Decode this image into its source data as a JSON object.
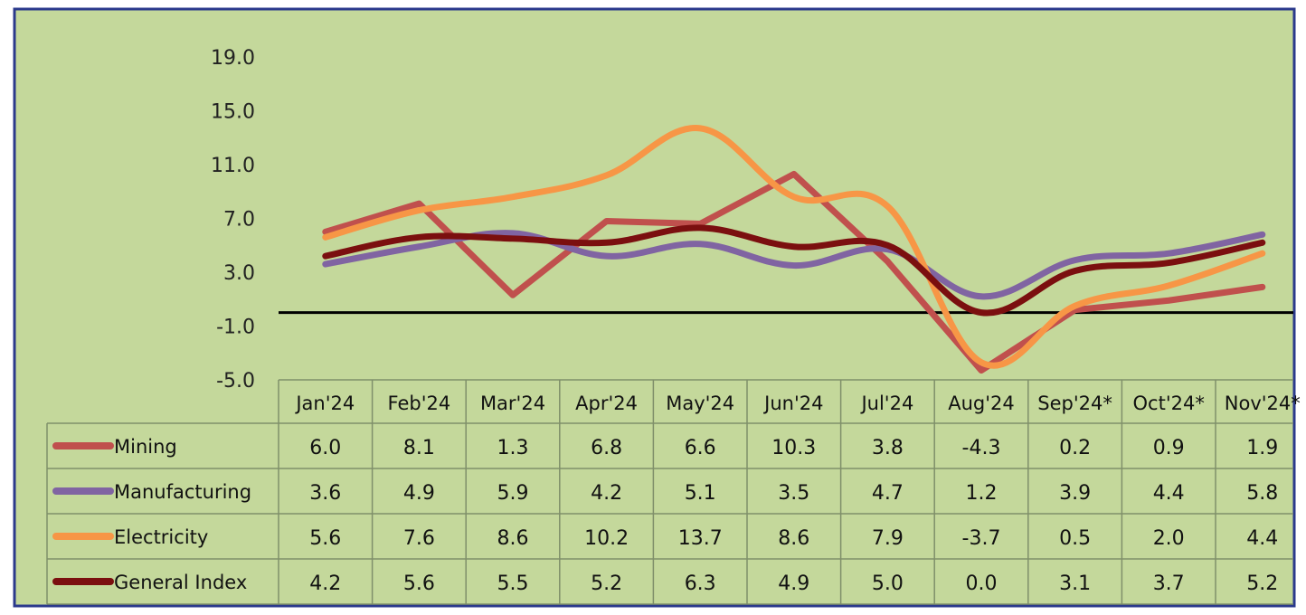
{
  "chart_data": {
    "type": "line",
    "categories": [
      "Jan'24",
      "Feb'24",
      "Mar'24",
      "Apr'24",
      "May'24",
      "Jun'24",
      "Jul'24",
      "Aug'24",
      "Sep'24*",
      "Oct'24*",
      "Nov'24*"
    ],
    "series": [
      {
        "name": "Mining",
        "color": "#c0504d",
        "values": [
          6.0,
          8.1,
          1.3,
          6.8,
          6.6,
          10.3,
          3.8,
          -4.3,
          0.2,
          0.9,
          1.9
        ]
      },
      {
        "name": "Manufacturing",
        "color": "#8064a2",
        "values": [
          3.6,
          4.9,
          5.9,
          4.2,
          5.1,
          3.5,
          4.7,
          1.2,
          3.9,
          4.4,
          5.8
        ]
      },
      {
        "name": "Electricity",
        "color": "#f79646",
        "values": [
          5.6,
          7.6,
          8.6,
          10.2,
          13.7,
          8.6,
          7.9,
          -3.7,
          0.5,
          2.0,
          4.4
        ]
      },
      {
        "name": "General Index",
        "color": "#7b0f0f",
        "values": [
          4.2,
          5.6,
          5.5,
          5.2,
          6.3,
          4.9,
          5.0,
          0.0,
          3.1,
          3.7,
          5.2
        ]
      }
    ],
    "yticks": [
      "19.0",
      "15.0",
      "11.0",
      "7.0",
      "3.0",
      "-1.0",
      "-5.0"
    ],
    "ylim": [
      -5,
      19
    ],
    "data_table": true,
    "background": "#c4d89b",
    "border_color": "#2b3a8c"
  }
}
